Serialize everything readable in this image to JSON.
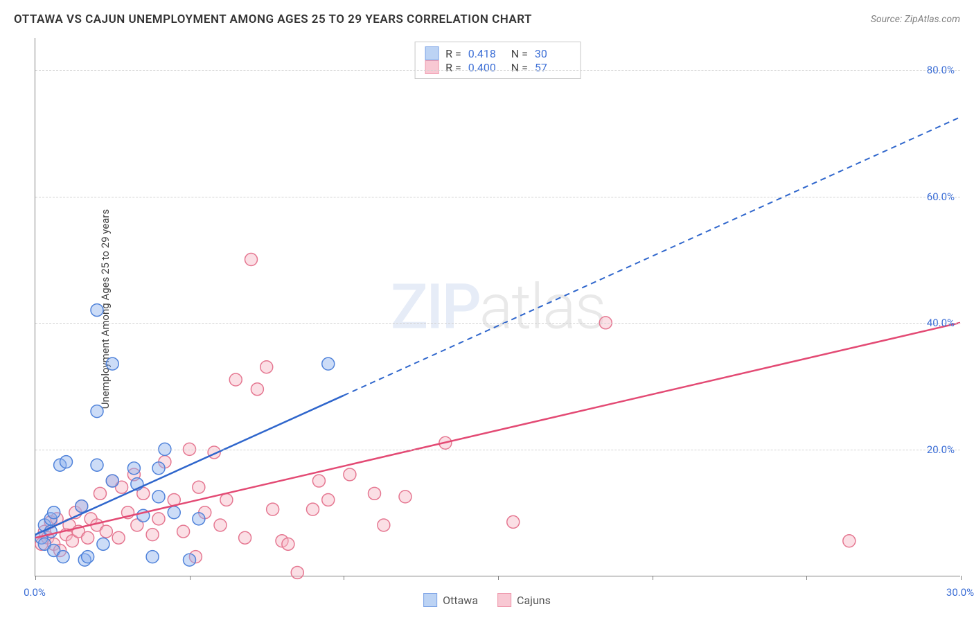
{
  "title": "OTTAWA VS CAJUN UNEMPLOYMENT AMONG AGES 25 TO 29 YEARS CORRELATION CHART",
  "source": "Source: ZipAtlas.com",
  "watermark_zip": "ZIP",
  "watermark_atlas": "atlas",
  "ylabel": "Unemployment Among Ages 25 to 29 years",
  "chart": {
    "type": "scatter-correlation",
    "background_color": "#ffffff",
    "axis_color": "#808080",
    "grid_color": "#d2d2d2",
    "xlim": [
      0,
      30
    ],
    "ylim": [
      0,
      85
    ],
    "ygrid": [
      20,
      40,
      60,
      80
    ],
    "ytick_labels": [
      "20.0%",
      "40.0%",
      "60.0%",
      "80.0%"
    ],
    "ytick_color": "#3d6fd6",
    "xticks": [
      0,
      5,
      10,
      15,
      20,
      25,
      30
    ],
    "xtick_labels_shown": {
      "0": "0.0%",
      "30": "30.0%"
    },
    "xtick_label_color": "#3d6fd6",
    "stat_legend": [
      {
        "swatch_fill": "#bcd3f4",
        "swatch_border": "#7ea4e6",
        "r_label": "R =",
        "r": "0.418",
        "n_label": "N =",
        "n": "30"
      },
      {
        "swatch_fill": "#f8c8d3",
        "swatch_border": "#ef99ad",
        "r_label": "R =",
        "r": "0.400",
        "n_label": "N =",
        "n": "57"
      }
    ],
    "series_legend": [
      {
        "swatch_fill": "#bcd3f4",
        "swatch_border": "#7ea4e6",
        "label": "Ottawa"
      },
      {
        "swatch_fill": "#f8c8d3",
        "swatch_border": "#ef99ad",
        "label": "Cajuns"
      }
    ],
    "marker_radius": 9,
    "marker_fill_opacity": 0.45,
    "marker_stroke_width": 1.5,
    "line_width_solid": 2.5,
    "line_width_dash": 2,
    "dash_pattern": "8 6",
    "series": {
      "ottawa": {
        "fill": "#8db2ee",
        "stroke": "#4f82da",
        "trend_color": "#2f66cc",
        "trend_solid": {
          "x1": 0,
          "y1": 6.5,
          "x2": 10,
          "y2": 28.5
        },
        "trend_dash": {
          "x1": 10,
          "y1": 28.5,
          "x2": 30,
          "y2": 72.5
        },
        "points": [
          [
            0.2,
            6.0
          ],
          [
            0.3,
            8.0
          ],
          [
            0.3,
            5.0
          ],
          [
            0.5,
            7.0
          ],
          [
            0.5,
            9.0
          ],
          [
            0.6,
            10.0
          ],
          [
            0.6,
            4.0
          ],
          [
            0.8,
            17.5
          ],
          [
            0.9,
            3.0
          ],
          [
            1.0,
            18.0
          ],
          [
            1.5,
            11.0
          ],
          [
            1.6,
            2.5
          ],
          [
            1.7,
            3.0
          ],
          [
            2.0,
            42.0
          ],
          [
            2.0,
            26.0
          ],
          [
            2.0,
            17.5
          ],
          [
            2.2,
            5.0
          ],
          [
            2.5,
            15.0
          ],
          [
            2.5,
            33.5
          ],
          [
            3.2,
            17.0
          ],
          [
            3.3,
            14.5
          ],
          [
            3.5,
            9.5
          ],
          [
            3.8,
            3.0
          ],
          [
            4.0,
            17.0
          ],
          [
            4.0,
            12.5
          ],
          [
            4.2,
            20.0
          ],
          [
            4.5,
            10.0
          ],
          [
            5.0,
            2.5
          ],
          [
            5.3,
            9.0
          ],
          [
            9.5,
            33.5
          ]
        ]
      },
      "cajuns": {
        "fill": "#f6b7c5",
        "stroke": "#e57791",
        "trend_color": "#e34a74",
        "trend_solid": {
          "x1": 0,
          "y1": 6.0,
          "x2": 30,
          "y2": 40.0
        },
        "points": [
          [
            0.2,
            5.0
          ],
          [
            0.3,
            7.0
          ],
          [
            0.4,
            6.0
          ],
          [
            0.5,
            8.5
          ],
          [
            0.6,
            5.0
          ],
          [
            0.7,
            9.0
          ],
          [
            0.8,
            4.0
          ],
          [
            1.0,
            6.5
          ],
          [
            1.1,
            8.0
          ],
          [
            1.2,
            5.5
          ],
          [
            1.3,
            10.0
          ],
          [
            1.4,
            7.0
          ],
          [
            1.5,
            11.0
          ],
          [
            1.7,
            6.0
          ],
          [
            1.8,
            9.0
          ],
          [
            2.0,
            8.0
          ],
          [
            2.1,
            13.0
          ],
          [
            2.3,
            7.0
          ],
          [
            2.5,
            15.0
          ],
          [
            2.7,
            6.0
          ],
          [
            2.8,
            14.0
          ],
          [
            3.0,
            10.0
          ],
          [
            3.2,
            16.0
          ],
          [
            3.3,
            8.0
          ],
          [
            3.5,
            13.0
          ],
          [
            3.8,
            6.5
          ],
          [
            4.0,
            9.0
          ],
          [
            4.2,
            18.0
          ],
          [
            4.5,
            12.0
          ],
          [
            4.8,
            7.0
          ],
          [
            5.0,
            20.0
          ],
          [
            5.2,
            3.0
          ],
          [
            5.3,
            14.0
          ],
          [
            5.5,
            10.0
          ],
          [
            5.8,
            19.5
          ],
          [
            6.0,
            8.0
          ],
          [
            6.2,
            12.0
          ],
          [
            6.5,
            31.0
          ],
          [
            6.8,
            6.0
          ],
          [
            7.0,
            50.0
          ],
          [
            7.2,
            29.5
          ],
          [
            7.5,
            33.0
          ],
          [
            7.7,
            10.5
          ],
          [
            8.0,
            5.5
          ],
          [
            8.2,
            5.0
          ],
          [
            8.5,
            0.5
          ],
          [
            9.0,
            10.5
          ],
          [
            9.2,
            15.0
          ],
          [
            9.5,
            12.0
          ],
          [
            10.2,
            16.0
          ],
          [
            11.0,
            13.0
          ],
          [
            11.3,
            8.0
          ],
          [
            12.0,
            12.5
          ],
          [
            13.3,
            21.0
          ],
          [
            15.5,
            8.5
          ],
          [
            18.5,
            40.0
          ],
          [
            26.4,
            5.5
          ]
        ]
      }
    }
  }
}
